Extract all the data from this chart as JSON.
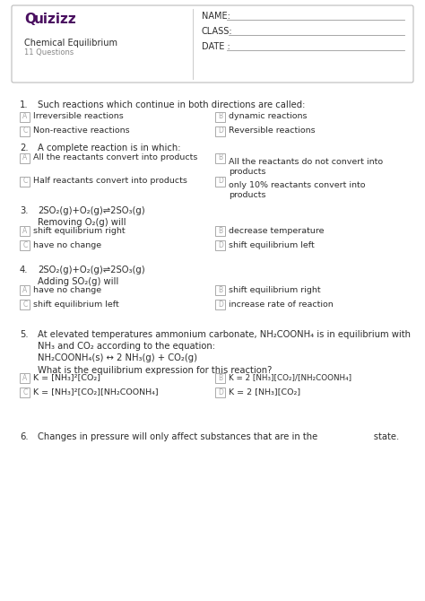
{
  "bg_color": "#ffffff",
  "border_color": "#cccccc",
  "quizizz_color": "#4a1060",
  "text_color": "#2d2d2d",
  "light_text": "#888888",
  "box_edge": "#aaaaaa",
  "header": {
    "logo": "Quizizz",
    "title": "Chemical Equilibrium",
    "subtitle": "11 Questions",
    "name_label": "NAME:",
    "class_label": "CLASS:",
    "date_label": "DATE :"
  },
  "questions": [
    {
      "num": "1.",
      "text": "Such reactions which continue in both directions are called:",
      "options": [
        {
          "letter": "A",
          "text": "Irreversible reactions"
        },
        {
          "letter": "B",
          "text": "dynamic reactions"
        },
        {
          "letter": "C",
          "text": "Non-reactive reactions"
        },
        {
          "letter": "D",
          "text": "Reversible reactions"
        }
      ]
    },
    {
      "num": "2.",
      "text": "A complete reaction is in which:",
      "options": [
        {
          "letter": "A",
          "text": "All the reactants convert into products"
        },
        {
          "letter": "B",
          "text": "All the reactants do not convert into\nproducts"
        },
        {
          "letter": "C",
          "text": "Half reactants convert into products"
        },
        {
          "letter": "D",
          "text": "only 10% reactants convert into\nproducts"
        }
      ]
    },
    {
      "num": "3.",
      "text": "2SO₂(g)+O₂(g)⇌2SO₃(g)\nRemoving O₂(g) will",
      "options": [
        {
          "letter": "A",
          "text": "shift equilibrium right"
        },
        {
          "letter": "B",
          "text": "decrease temperature"
        },
        {
          "letter": "C",
          "text": "have no change"
        },
        {
          "letter": "D",
          "text": "shift equilibrium left"
        }
      ]
    },
    {
      "num": "4.",
      "text": "2SO₂(g)+O₂(g)⇌2SO₃(g)\nAdding SO₂(g) will",
      "options": [
        {
          "letter": "A",
          "text": "have no change"
        },
        {
          "letter": "B",
          "text": "shift equilibrium right"
        },
        {
          "letter": "C",
          "text": "shift equilibrium left"
        },
        {
          "letter": "D",
          "text": "increase rate of reaction"
        }
      ]
    },
    {
      "num": "5.",
      "text": "At elevated temperatures ammonium carbonate, NH₂COONH₄ is in equilibrium with\nNH₃ and CO₂ according to the equation:\nNH₂COONH₄(s) ↔ 2 NH₃(g) + CO₂(g)\nWhat is the equilibrium expression for this reaction?",
      "options": [
        {
          "letter": "A",
          "text": "K = [NH₃]²[CO₂]"
        },
        {
          "letter": "B",
          "text": "K = 2 [NH₃][CO₂]/[NH₂COONH₄]"
        },
        {
          "letter": "C",
          "text": "K = [NH₃]²[CO₂][NH₂COONH₄]"
        },
        {
          "letter": "D",
          "text": "K = 2 [NH₃][CO₂]"
        }
      ]
    },
    {
      "num": "6.",
      "text": "Changes in pressure will only affect substances that are in the                    state."
    }
  ]
}
